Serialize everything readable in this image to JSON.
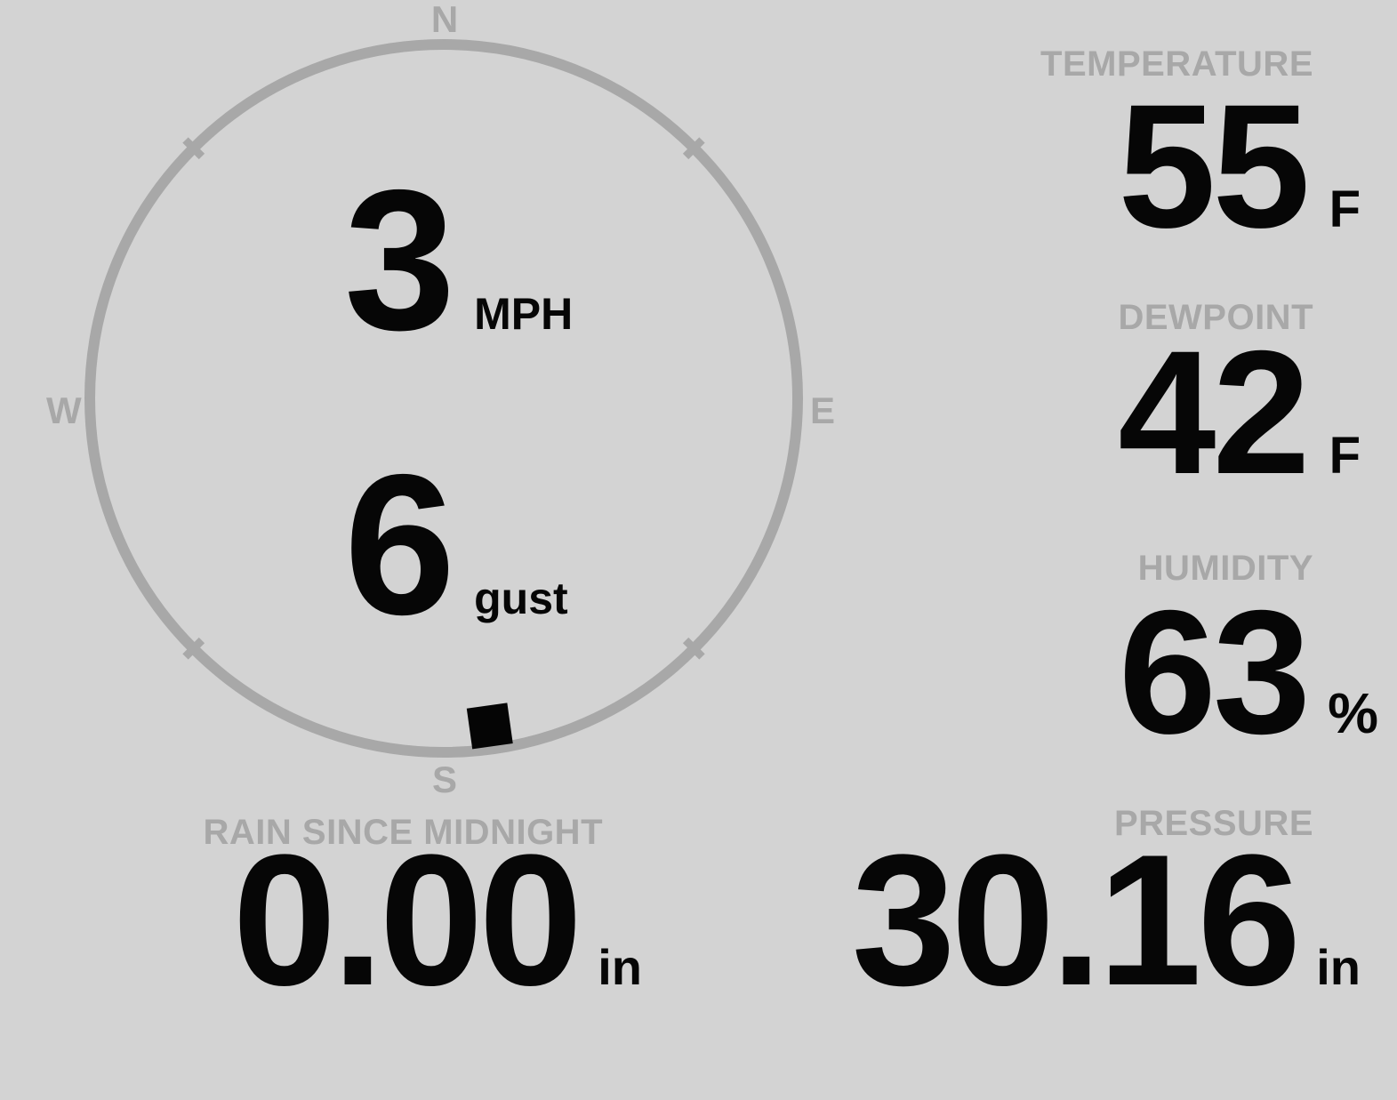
{
  "colors": {
    "background": "#d3d3d3",
    "muted": "#a8a8a8",
    "value_text": "#060606"
  },
  "compass": {
    "cardinal_n": "N",
    "cardinal_e": "E",
    "cardinal_s": "S",
    "cardinal_w": "W",
    "wind_direction_deg": 172
  },
  "wind": {
    "speed": "3",
    "speed_unit": "MPH",
    "gust": "6",
    "gust_unit": "gust"
  },
  "metrics": [
    {
      "label": "TEMPERATURE",
      "value": "55",
      "unit": "F"
    },
    {
      "label": "DEWPOINT",
      "value": "42",
      "unit": "F"
    },
    {
      "label": "HUMIDITY",
      "value": "63",
      "unit": "%"
    },
    {
      "label": "PRESSURE",
      "value": "30.16",
      "unit": "in"
    }
  ],
  "rain": {
    "label": "RAIN SINCE MIDNIGHT",
    "value": "0.00",
    "unit": "in"
  }
}
